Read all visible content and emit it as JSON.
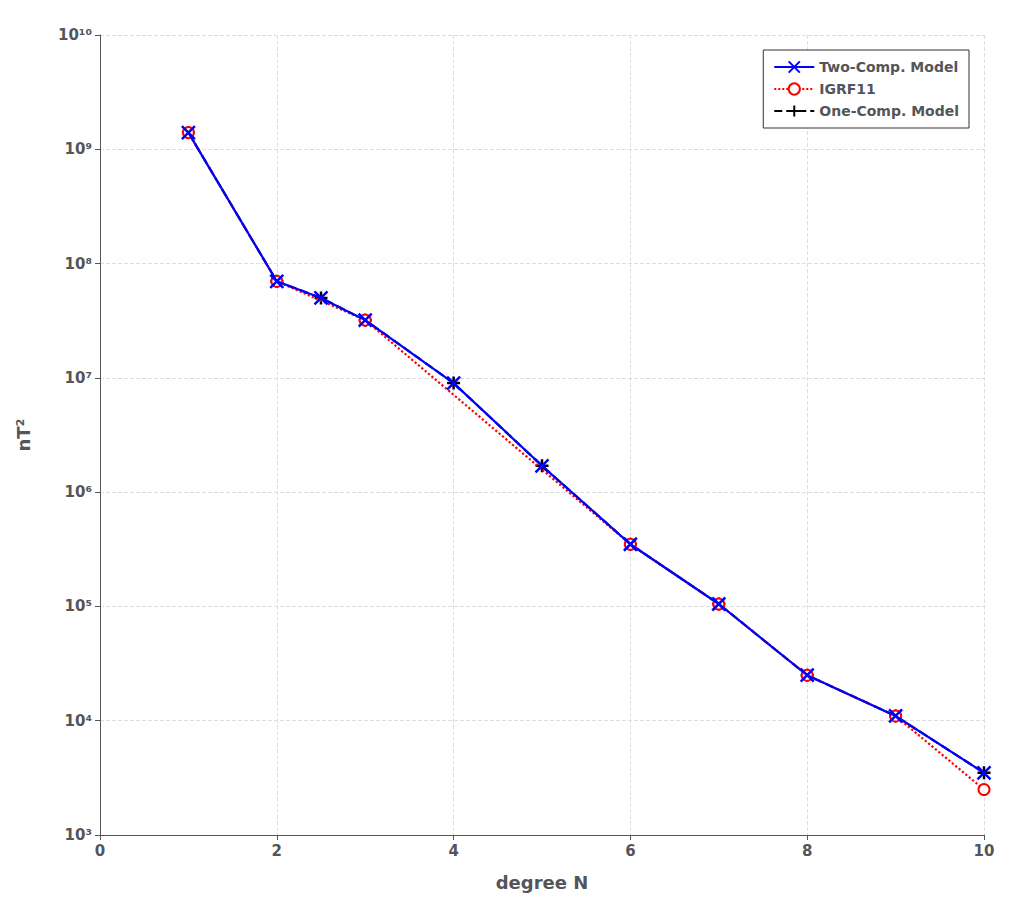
{
  "chart_data": {
    "type": "line",
    "xlabel": "degree N",
    "ylabel": "nT²",
    "log": "y",
    "grid": true,
    "legend": "upper right",
    "xlim": [
      0,
      10
    ],
    "xticks": [
      0,
      2,
      4,
      6,
      8,
      10
    ],
    "ylim": [
      1000,
      10000000000
    ],
    "yticks": [
      {
        "value": 1000,
        "label": "10³"
      },
      {
        "value": 10000,
        "label": "10⁴"
      },
      {
        "value": 100000,
        "label": "10⁵"
      },
      {
        "value": 1000000,
        "label": "10⁶"
      },
      {
        "value": 10000000,
        "label": "10⁷"
      },
      {
        "value": 100000000,
        "label": "10⁸"
      },
      {
        "value": 1000000000,
        "label": "10⁹"
      },
      {
        "value": 10000000000,
        "label": "10¹⁰"
      }
    ],
    "series": [
      {
        "name": "Two-Comp. Model",
        "color": "#0000FF",
        "marker": "x",
        "line_style": "solid",
        "x": [
          1,
          2,
          2.5,
          3,
          4,
          5,
          6,
          7,
          8,
          9,
          10
        ],
        "values": [
          1400000000.0,
          70000000.0,
          50000000.0,
          32000000.0,
          9000000.0,
          1700000.0,
          350000.0,
          105000.0,
          25000.0,
          11000.0,
          3500.0
        ]
      },
      {
        "name": "IGRF11",
        "color": "#FF0000",
        "marker": "circle-open",
        "line_style": "dotted",
        "x": [
          1,
          2,
          3,
          6,
          7,
          8,
          9,
          10
        ],
        "values": [
          1400000000.0,
          70000000.0,
          32000000.0,
          350000.0,
          105000.0,
          25000.0,
          11000.0,
          2500.0
        ]
      },
      {
        "name": "One-Comp. Model",
        "color": "#000000",
        "marker": "plus",
        "line_style": "dashed",
        "x": [
          1,
          2,
          2.5,
          3,
          4,
          5,
          6,
          7,
          8,
          9,
          10
        ],
        "values": [
          1400000000.0,
          70000000.0,
          50000000.0,
          32000000.0,
          9000000.0,
          1700000.0,
          350000.0,
          105000.0,
          25000.0,
          11000.0,
          3500.0
        ]
      }
    ]
  }
}
